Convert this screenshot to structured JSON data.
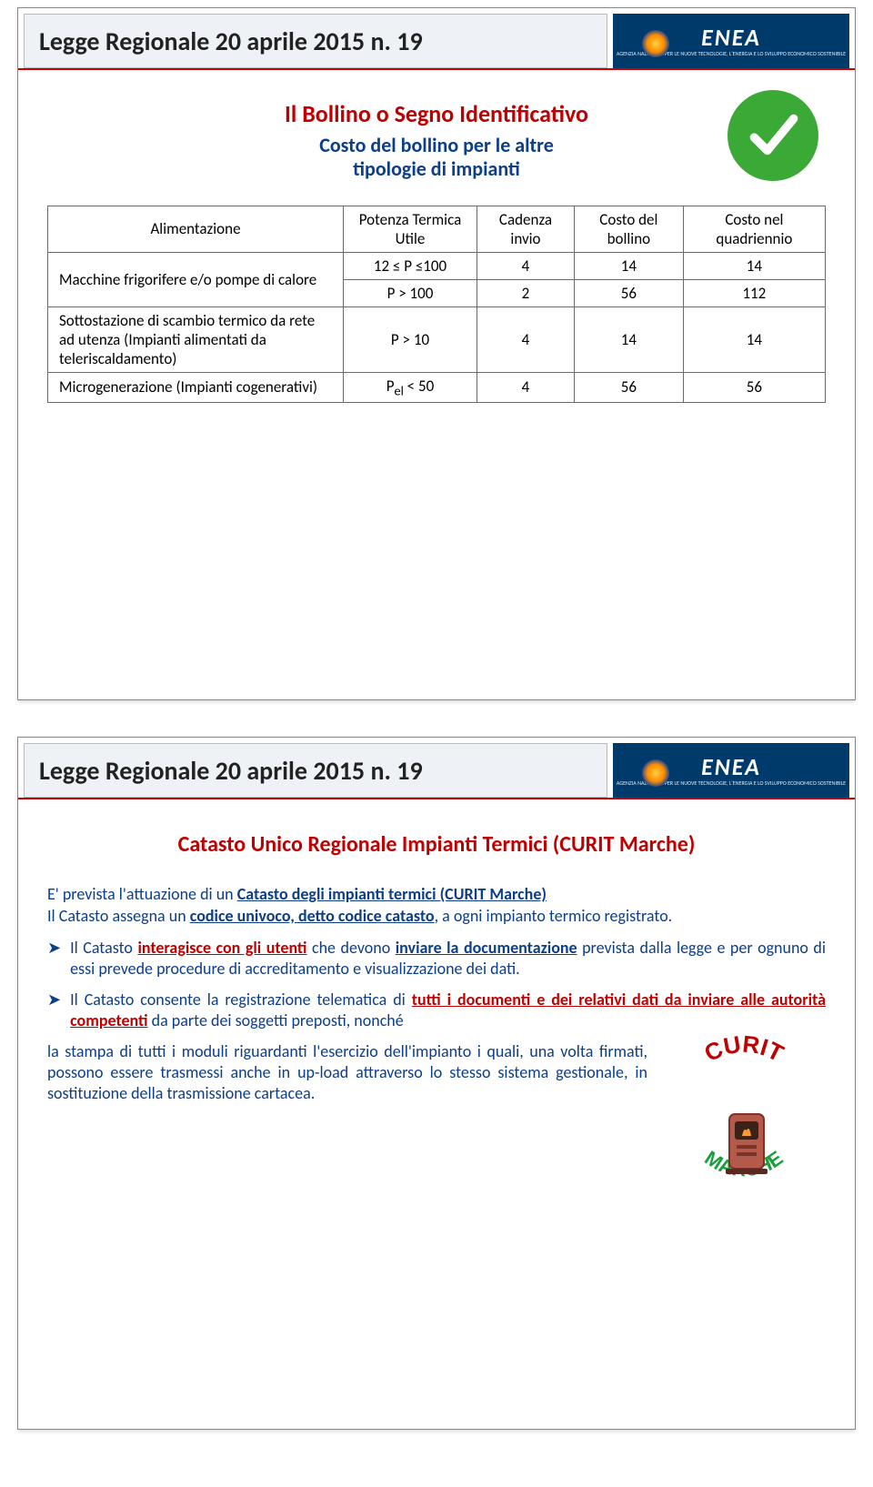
{
  "header": {
    "law_title": "Legge Regionale 20 aprile 2015 n. 19",
    "agency": "ENEA",
    "agency_sub": "AGENZIA NAZIONALE PER LE NUOVE TECNOLOGIE, L'ENERGIA E LO SVILUPPO ECONOMICO SOSTENIBILE"
  },
  "slide1": {
    "title_red": "Il Bollino o Segno Identificativo",
    "title_blue_line1": "Costo del bollino per le altre",
    "title_blue_line2": "tipologie di impianti",
    "table": {
      "columns": [
        "Alimentazione",
        "Potenza Termica Utile",
        "Cadenza invio",
        "Costo del bollino",
        "Costo nel quadriennio"
      ],
      "rows": [
        {
          "label": "Macchine frigorifere e/o pompe di calore",
          "rowspan": 2,
          "power": "12 ≤ P ≤100",
          "cadenza": "4",
          "costo_bollino": "14",
          "costo_quad": "14"
        },
        {
          "label": "",
          "power": "P > 100",
          "cadenza": "2",
          "costo_bollino": "56",
          "costo_quad": "112"
        },
        {
          "label": "Sottostazione di scambio termico da rete ad utenza (Impianti alimentati da teleriscaldamento)",
          "rowspan": 1,
          "power": "P > 10",
          "cadenza": "4",
          "costo_bollino": "14",
          "costo_quad": "14"
        },
        {
          "label": "Microgenerazione (Impianti cogenerativi)",
          "rowspan": 1,
          "power_html": "P<sub>el</sub> < 50",
          "cadenza": "4",
          "costo_bollino": "56",
          "costo_quad": "56"
        }
      ],
      "col_widths": [
        "300px",
        "170px",
        "100px",
        "110px",
        "120px"
      ]
    }
  },
  "slide2": {
    "title": "Catasto Unico Regionale Impianti Termici (CURIT Marche)",
    "para1_parts": {
      "a": "E' prevista l'attuazione di un ",
      "b": "Catasto degli impianti termici (CURIT Marche)",
      "c": "Il Catasto assegna un ",
      "d": "codice univoco, detto codice catasto",
      "e": ", a ogni impianto termico registrato."
    },
    "bullet1_parts": {
      "a": "Il Catasto ",
      "b": "interagisce con gli utenti",
      "c": " che devono ",
      "d": "inviare la documentazione",
      "e": " prevista dalla legge e per ognuno di essi prevede procedure di accreditamento e visualizzazione dei dati."
    },
    "bullet2_parts": {
      "a": "Il Catasto consente la registrazione telematica di ",
      "b": "tutti i documenti e dei relativi dati da inviare alle autorità competenti",
      "c": " da parte dei soggetti preposti, nonché"
    },
    "lower_text": "la stampa di tutti i moduli riguardanti l'esercizio dell'impianto i quali, una volta firmati, possono essere trasmessi anche in up-load attraverso lo stesso sistema gestionale, in sostituzione della trasmissione cartacea.",
    "curit_word1": "CURIT",
    "curit_word2": "MARCHE"
  },
  "colors": {
    "brand_red": "#c00000",
    "brand_blue": "#0d3e8a",
    "header_blue": "#003a6a",
    "green": "#3aa935"
  }
}
